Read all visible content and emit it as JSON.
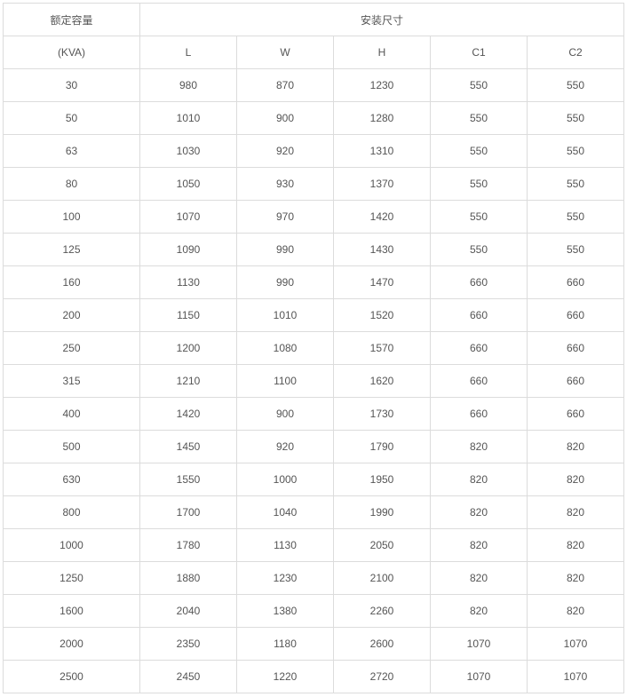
{
  "table": {
    "header_row1": {
      "capacity_label": "额定容量",
      "dimensions_label": "安装尺寸"
    },
    "header_row2": [
      "(KVA)",
      "L",
      "W",
      "H",
      "C1",
      "C2"
    ],
    "rows": [
      [
        "30",
        "980",
        "870",
        "1230",
        "550",
        "550"
      ],
      [
        "50",
        "1010",
        "900",
        "1280",
        "550",
        "550"
      ],
      [
        "63",
        "1030",
        "920",
        "1310",
        "550",
        "550"
      ],
      [
        "80",
        "1050",
        "930",
        "1370",
        "550",
        "550"
      ],
      [
        "100",
        "1070",
        "970",
        "1420",
        "550",
        "550"
      ],
      [
        "125",
        "1090",
        "990",
        "1430",
        "550",
        "550"
      ],
      [
        "160",
        "1130",
        "990",
        "1470",
        "660",
        "660"
      ],
      [
        "200",
        "1150",
        "1010",
        "1520",
        "660",
        "660"
      ],
      [
        "250",
        "1200",
        "1080",
        "1570",
        "660",
        "660"
      ],
      [
        "315",
        "1210",
        "1100",
        "1620",
        "660",
        "660"
      ],
      [
        "400",
        "1420",
        "900",
        "1730",
        "660",
        "660"
      ],
      [
        "500",
        "1450",
        "920",
        "1790",
        "820",
        "820"
      ],
      [
        "630",
        "1550",
        "1000",
        "1950",
        "820",
        "820"
      ],
      [
        "800",
        "1700",
        "1040",
        "1990",
        "820",
        "820"
      ],
      [
        "1000",
        "1780",
        "1130",
        "2050",
        "820",
        "820"
      ],
      [
        "1250",
        "1880",
        "1230",
        "2100",
        "820",
        "820"
      ],
      [
        "1600",
        "2040",
        "1380",
        "2260",
        "820",
        "820"
      ],
      [
        "2000",
        "2350",
        "1180",
        "2600",
        "1070",
        "1070"
      ],
      [
        "2500",
        "2450",
        "1220",
        "2720",
        "1070",
        "1070"
      ]
    ]
  }
}
